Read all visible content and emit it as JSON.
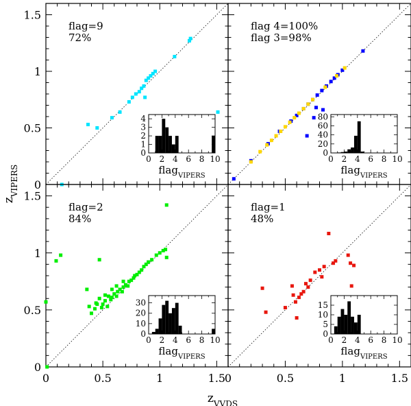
{
  "axes": {
    "xlabel": "z",
    "xlabel_sub": "VVDS",
    "ylabel": "z",
    "ylabel_sub": "VIPERS",
    "xlim": [
      0,
      1.6
    ],
    "ylim": [
      0,
      1.6
    ],
    "x_ticks": [
      "0",
      "0.5",
      "1",
      "1.5"
    ],
    "y_ticks": [
      "0",
      "0.5",
      "1",
      "1.5"
    ]
  },
  "inset": {
    "xlabel": "flag",
    "xlabel_sub": "VIPERS",
    "x_ticks": [
      "0",
      "2",
      "4",
      "6",
      "8",
      "10"
    ]
  },
  "chart_data": [
    {
      "type": "scatter",
      "panel": "top-left",
      "annotation": [
        "flag=9",
        "72%"
      ],
      "color": "#00e5ff",
      "points": [
        [
          0.37,
          0.53
        ],
        [
          0.45,
          0.5
        ],
        [
          0.58,
          0.59
        ],
        [
          0.65,
          0.64
        ],
        [
          0.73,
          0.73
        ],
        [
          0.76,
          0.77
        ],
        [
          0.79,
          0.8
        ],
        [
          0.82,
          0.82
        ],
        [
          0.84,
          0.85
        ],
        [
          0.86,
          0.87
        ],
        [
          0.87,
          0.77
        ],
        [
          0.88,
          0.92
        ],
        [
          0.9,
          0.94
        ],
        [
          0.92,
          0.96
        ],
        [
          0.94,
          0.98
        ],
        [
          0.96,
          1.0
        ],
        [
          1.13,
          1.13
        ],
        [
          1.26,
          1.27
        ],
        [
          1.27,
          1.29
        ],
        [
          1.51,
          0.64
        ],
        [
          0.14,
          0.0
        ]
      ],
      "inset": {
        "ylim": [
          0,
          4.5
        ],
        "y_ticks": [
          "0",
          "1",
          "2",
          "3",
          "4"
        ],
        "bins": [
          [
            1,
            2
          ],
          [
            1.5,
            2
          ],
          [
            2,
            4
          ],
          [
            2.5,
            3
          ],
          [
            3,
            2
          ],
          [
            3.5,
            1
          ],
          [
            4,
            2
          ],
          [
            9.5,
            2
          ]
        ]
      }
    },
    {
      "type": "scatter",
      "panel": "top-right",
      "annotation": [
        "flag 4=100%",
        "flag 3=98%"
      ],
      "series": [
        {
          "name": "flag 4",
          "color": "#0000ff",
          "points": [
            [
              0.05,
              0.05
            ],
            [
              0.2,
              0.21
            ],
            [
              0.35,
              0.36
            ],
            [
              0.45,
              0.47
            ],
            [
              0.55,
              0.56
            ],
            [
              0.6,
              0.61
            ],
            [
              0.66,
              0.67
            ],
            [
              0.7,
              0.71
            ],
            [
              0.74,
              0.75
            ],
            [
              0.78,
              0.79
            ],
            [
              0.82,
              0.83
            ],
            [
              0.86,
              0.87
            ],
            [
              0.9,
              0.91
            ],
            [
              0.93,
              0.94
            ],
            [
              0.96,
              0.97
            ],
            [
              1.0,
              1.01
            ],
            [
              0.83,
              0.66
            ],
            [
              0.75,
              0.59
            ],
            [
              1.18,
              1.18
            ],
            [
              0.69,
              0.43
            ],
            [
              0.77,
              0.68
            ]
          ]
        },
        {
          "name": "flag 3",
          "color": "#ffd700",
          "points": [
            [
              0.2,
              0.2
            ],
            [
              0.28,
              0.29
            ],
            [
              0.34,
              0.35
            ],
            [
              0.38,
              0.39
            ],
            [
              0.42,
              0.43
            ],
            [
              0.46,
              0.47
            ],
            [
              0.5,
              0.51
            ],
            [
              0.54,
              0.55
            ],
            [
              0.58,
              0.59
            ],
            [
              0.62,
              0.63
            ],
            [
              0.66,
              0.67
            ],
            [
              0.7,
              0.71
            ],
            [
              0.74,
              0.75
            ],
            [
              0.85,
              0.86
            ],
            [
              0.95,
              0.96
            ],
            [
              1.02,
              1.03
            ]
          ]
        }
      ],
      "inset": {
        "ylim": [
          0,
          85
        ],
        "y_ticks": [
          "0",
          "20",
          "40",
          "60",
          "80"
        ],
        "bins": [
          [
            1,
            1
          ],
          [
            1.5,
            2
          ],
          [
            2,
            3
          ],
          [
            2.5,
            8
          ],
          [
            3,
            12
          ],
          [
            3.5,
            38
          ],
          [
            4,
            70
          ],
          [
            4.5,
            3
          ]
        ]
      }
    },
    {
      "type": "scatter",
      "panel": "bottom-left",
      "annotation": [
        "flag=2",
        "84%"
      ],
      "color": "#00ee00",
      "points": [
        [
          0.0,
          0.57
        ],
        [
          0.01,
          0.0
        ],
        [
          0.09,
          0.93
        ],
        [
          0.13,
          0.98
        ],
        [
          0.36,
          0.68
        ],
        [
          0.38,
          0.53
        ],
        [
          0.4,
          0.47
        ],
        [
          0.43,
          0.51
        ],
        [
          0.45,
          0.55
        ],
        [
          0.47,
          0.6
        ],
        [
          0.47,
          0.94
        ],
        [
          0.49,
          0.52
        ],
        [
          0.5,
          0.55
        ],
        [
          0.52,
          0.58
        ],
        [
          0.54,
          0.53
        ],
        [
          0.55,
          0.62
        ],
        [
          0.57,
          0.59
        ],
        [
          0.58,
          0.61
        ],
        [
          0.6,
          0.64
        ],
        [
          0.62,
          0.62
        ],
        [
          0.63,
          0.66
        ],
        [
          0.65,
          0.68
        ],
        [
          0.67,
          0.66
        ],
        [
          0.68,
          0.7
        ],
        [
          0.7,
          0.72
        ],
        [
          0.72,
          0.71
        ],
        [
          0.73,
          0.75
        ],
        [
          0.75,
          0.76
        ],
        [
          0.77,
          0.78
        ],
        [
          0.78,
          0.8
        ],
        [
          0.8,
          0.81
        ],
        [
          0.82,
          0.83
        ],
        [
          0.84,
          0.85
        ],
        [
          0.86,
          0.88
        ],
        [
          0.88,
          0.9
        ],
        [
          0.9,
          0.92
        ],
        [
          0.93,
          0.94
        ],
        [
          0.97,
          0.98
        ],
        [
          1.0,
          1.0
        ],
        [
          1.03,
          1.02
        ],
        [
          1.05,
          1.03
        ],
        [
          1.06,
          0.96
        ],
        [
          1.06,
          1.42
        ],
        [
          0.62,
          0.71
        ],
        [
          0.68,
          0.75
        ],
        [
          0.58,
          0.68
        ],
        [
          0.52,
          0.63
        ],
        [
          0.44,
          0.56
        ]
      ],
      "inset": {
        "ylim": [
          0,
          37
        ],
        "y_ticks": [
          "0",
          "10",
          "20",
          "30"
        ],
        "bins": [
          [
            0.5,
            2
          ],
          [
            1,
            5
          ],
          [
            1.5,
            15
          ],
          [
            2,
            28
          ],
          [
            2.5,
            32
          ],
          [
            3,
            20
          ],
          [
            3.5,
            25
          ],
          [
            4,
            30
          ],
          [
            4.5,
            8
          ],
          [
            9.5,
            5
          ]
        ]
      }
    },
    {
      "type": "scatter",
      "panel": "bottom-right",
      "annotation": [
        "flag=1",
        "48%"
      ],
      "color": "#e8170e",
      "points": [
        [
          0.3,
          0.69
        ],
        [
          0.33,
          0.48
        ],
        [
          0.5,
          0.52
        ],
        [
          0.56,
          0.71
        ],
        [
          0.57,
          0.63
        ],
        [
          0.59,
          0.57
        ],
        [
          0.6,
          0.43
        ],
        [
          0.62,
          0.61
        ],
        [
          0.64,
          0.64
        ],
        [
          0.66,
          0.66
        ],
        [
          0.68,
          0.73
        ],
        [
          0.7,
          0.7
        ],
        [
          0.72,
          0.76
        ],
        [
          0.76,
          0.83
        ],
        [
          0.8,
          0.85
        ],
        [
          0.84,
          0.88
        ],
        [
          0.88,
          1.17
        ],
        [
          0.92,
          0.91
        ],
        [
          0.94,
          0.93
        ],
        [
          1.07,
          0.91
        ],
        [
          1.1,
          0.89
        ],
        [
          1.08,
          0.71
        ],
        [
          0.82,
          0.79
        ],
        [
          1.05,
          0.98
        ]
      ],
      "inset": {
        "ylim": [
          0,
          20
        ],
        "y_ticks": [
          "0",
          "5",
          "10",
          "15"
        ],
        "bins": [
          [
            0.5,
            4
          ],
          [
            1,
            9
          ],
          [
            1.5,
            13
          ],
          [
            2,
            10
          ],
          [
            2.5,
            17
          ],
          [
            3,
            9
          ],
          [
            3.5,
            6
          ],
          [
            4,
            10
          ]
        ]
      }
    }
  ]
}
